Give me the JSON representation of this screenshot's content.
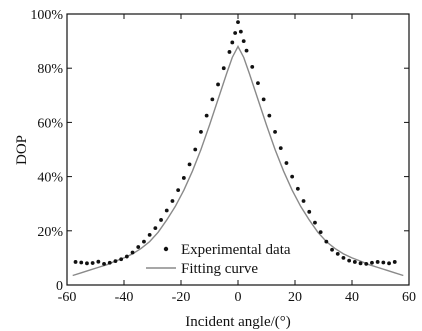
{
  "colors": {
    "data": "#111111",
    "fit": "#8a8a8a",
    "axis": "#111111"
  },
  "chart_data": {
    "type": "scatter",
    "title": "",
    "xlabel": "Incident angle/(°)",
    "ylabel": "DOP",
    "xlim": [
      -60,
      60
    ],
    "ylim": [
      0,
      100
    ],
    "xticks": [
      -60,
      -40,
      -20,
      0,
      20,
      40,
      60
    ],
    "yticks": [
      0,
      20,
      40,
      60,
      80,
      100
    ],
    "xtick_labels": [
      "-60",
      "-40",
      "-20",
      "0",
      "20",
      "40",
      "60"
    ],
    "ytick_labels": [
      "0",
      "20%",
      "40%",
      "60%",
      "80%",
      "100%"
    ],
    "grid": false,
    "legend": {
      "placement": "bottom-right",
      "entries": [
        "Experimental data",
        "Fitting curve"
      ]
    },
    "series": [
      {
        "name": "Experimental data",
        "kind": "points",
        "x": [
          -57,
          -55,
          -53,
          -51,
          -49,
          -47,
          -45,
          -43,
          -41,
          -39,
          -37,
          -35,
          -33,
          -31,
          -29,
          -27,
          -25,
          -23,
          -21,
          -19,
          -17,
          -15,
          -13,
          -11,
          -9,
          -7,
          -5,
          -3,
          -2,
          -1,
          0,
          1,
          2,
          3,
          5,
          7,
          9,
          11,
          13,
          15,
          17,
          19,
          21,
          23,
          25,
          27,
          29,
          31,
          33,
          35,
          37,
          39,
          41,
          43,
          45,
          47,
          49,
          51,
          53,
          55
        ],
        "y": [
          8.5,
          8.3,
          8.0,
          8.1,
          8.6,
          7.8,
          8.2,
          8.8,
          9.5,
          10.5,
          12.0,
          14.0,
          16.0,
          18.5,
          21.0,
          24.0,
          27.5,
          31.0,
          35.0,
          39.5,
          44.5,
          50.0,
          56.5,
          62.5,
          68.5,
          74.0,
          80.0,
          86.0,
          89.5,
          93.0,
          97.0,
          93.5,
          90.0,
          86.5,
          80.5,
          74.5,
          68.5,
          62.5,
          56.5,
          50.5,
          45.0,
          40.0,
          35.5,
          31.0,
          27.0,
          23.0,
          19.5,
          16.0,
          13.0,
          11.5,
          10.0,
          9.0,
          8.5,
          8.0,
          7.8,
          8.2,
          8.5,
          8.3,
          8.0,
          8.5
        ]
      },
      {
        "name": "Fitting curve",
        "kind": "line",
        "x": [
          -58,
          -55,
          -52,
          -49,
          -46,
          -43,
          -40,
          -37,
          -34,
          -31,
          -28,
          -25,
          -22,
          -19,
          -16,
          -13,
          -10,
          -7,
          -4,
          -2,
          0,
          2,
          4,
          7,
          10,
          13,
          16,
          19,
          22,
          25,
          28,
          31,
          34,
          37,
          40,
          43,
          46,
          49,
          52,
          55,
          58
        ],
        "y": [
          3.5,
          4.5,
          5.5,
          6.5,
          7.5,
          8.8,
          10.0,
          11.5,
          13.5,
          16.0,
          19.5,
          24.0,
          29.0,
          35.0,
          42.0,
          50.0,
          59.0,
          68.5,
          78.0,
          84.0,
          88.0,
          84.0,
          78.0,
          68.5,
          59.0,
          50.0,
          42.0,
          35.0,
          29.0,
          24.0,
          19.5,
          16.0,
          13.5,
          11.5,
          10.0,
          8.8,
          7.5,
          6.5,
          5.5,
          4.5,
          3.5
        ]
      }
    ]
  }
}
